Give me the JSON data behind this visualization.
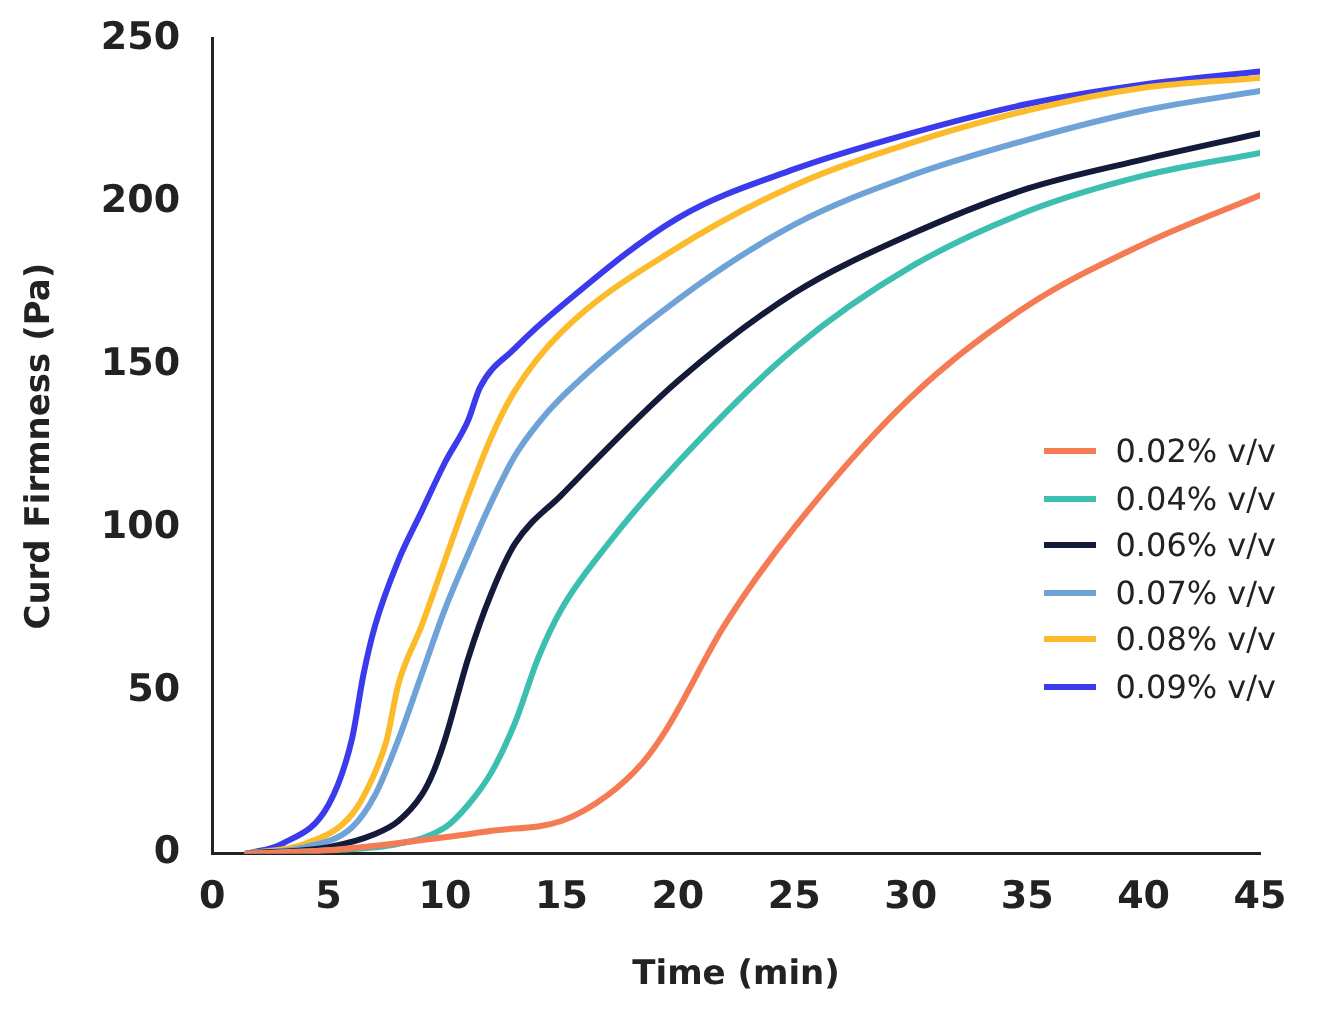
{
  "chart_data": {
    "type": "line",
    "xlabel": "Time (min)",
    "ylabel": "Curd Firmness (Pa)",
    "xlim": [
      0,
      45
    ],
    "xticks": [
      0,
      5,
      10,
      15,
      20,
      25,
      30,
      35,
      40,
      45
    ],
    "ylim": [
      0,
      250
    ],
    "yticks": [
      0,
      50,
      100,
      150,
      200,
      250
    ],
    "grid": false,
    "legend": "right",
    "marker": "none",
    "line_style": "solid",
    "series": [
      {
        "name": "0.02% v/v",
        "color": "#f47b53",
        "x": [
          1.5,
          5,
          10,
          12,
          15,
          17,
          18.5,
          19.5,
          22,
          25,
          30,
          35,
          40,
          45
        ],
        "values": [
          0,
          1,
          5,
          7,
          10,
          18,
          28,
          38,
          70,
          100,
          140,
          168,
          187,
          202
        ]
      },
      {
        "name": "0.04% v/v",
        "color": "#3cbfb1",
        "x": [
          1.5,
          5,
          8,
          10,
          11,
          12,
          13,
          14,
          15,
          17,
          20,
          25,
          30,
          35,
          40,
          45
        ],
        "values": [
          0,
          1,
          3,
          8,
          15,
          25,
          40,
          60,
          75,
          95,
          120,
          155,
          180,
          197,
          208,
          215
        ]
      },
      {
        "name": "0.06% v/v",
        "color": "#141a3a",
        "x": [
          1.5,
          5,
          7,
          8,
          9,
          9.5,
          10,
          11,
          12,
          13,
          15,
          20,
          25,
          30,
          35,
          40,
          45
        ],
        "values": [
          0,
          2,
          6,
          10,
          18,
          25,
          35,
          60,
          80,
          95,
          110,
          145,
          172,
          190,
          204,
          213,
          221
        ]
      },
      {
        "name": "0.07% v/v",
        "color": "#6fa3d8",
        "x": [
          1.5,
          4,
          6,
          7,
          8,
          9,
          10,
          11,
          12,
          13,
          14,
          15,
          20,
          25,
          30,
          35,
          40,
          45
        ],
        "values": [
          0,
          2,
          8,
          18,
          35,
          55,
          75,
          92,
          108,
          122,
          132,
          140,
          170,
          193,
          208,
          219,
          228,
          234
        ]
      },
      {
        "name": "0.08% v/v",
        "color": "#fcbb2b",
        "x": [
          1.5,
          4,
          6,
          7,
          7.5,
          8,
          9,
          10,
          11,
          12,
          13,
          15,
          20,
          25,
          30,
          35,
          40,
          45
        ],
        "values": [
          0,
          3,
          12,
          25,
          35,
          52,
          70,
          90,
          110,
          128,
          142,
          160,
          186,
          205,
          218,
          228,
          235,
          238
        ]
      },
      {
        "name": "0.09% v/v",
        "color": "#3b3bed",
        "x": [
          1.5,
          3,
          5,
          6,
          6.5,
          7,
          8,
          9,
          10,
          11,
          11.5,
          13,
          15,
          20,
          25,
          30,
          35,
          40,
          45
        ],
        "values": [
          0,
          3,
          15,
          35,
          55,
          70,
          90,
          105,
          120,
          133,
          143,
          155,
          168,
          195,
          210,
          221,
          230,
          236,
          240
        ]
      }
    ]
  }
}
